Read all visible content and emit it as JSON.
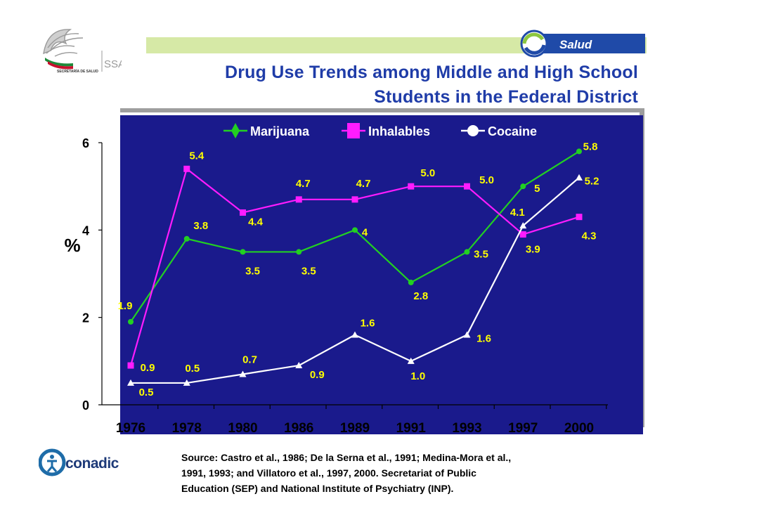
{
  "header": {
    "title_line1": "Drug Use Trends among  Middle and High School",
    "title_line2": "Students in the Federal District",
    "gov_logo_text": "SECRETARÍA DE SALUD",
    "gov_logo_ssa": "SSA",
    "salud_logo_text": "Salud"
  },
  "footer": {
    "source_line1": "Source: Castro et al., 1986; De la Serna et al., 1991; Medina-Mora et al.,",
    "source_line2": "1991, 1993; and Villatoro et al., 1997, 2000. Secretariat of Public",
    "source_line3": "Education (SEP) and National Institute of Psychiatry (INP).",
    "conadic_logo_text": "conadic"
  },
  "colors": {
    "plot_background": "#1a1a8c",
    "marijuana": "#22d022",
    "inhalables": "#ff1cff",
    "cocaine": "#ffffff",
    "data_label": "#ffff00",
    "title": "#1f3ca8",
    "top_band": "#d6e9a6"
  },
  "chart_data": {
    "type": "line",
    "categories": [
      "1976",
      "1978",
      "1980",
      "1986",
      "1989",
      "1991",
      "1993",
      "1997",
      "2000"
    ],
    "ylabel": "%",
    "ylim": [
      0,
      6
    ],
    "yticks": [
      "0",
      "2",
      "4",
      "6"
    ],
    "grid": false,
    "legend_position": "top",
    "series": [
      {
        "name": "Marijuana",
        "marker": "circle",
        "values": [
          1.9,
          3.8,
          3.5,
          3.5,
          4.0,
          2.8,
          3.5,
          5.0,
          5.8
        ],
        "labels": [
          "1.9",
          "3.8",
          "3.5",
          "3.5",
          "4",
          "2.8",
          "3.5",
          "5",
          "5.8"
        ]
      },
      {
        "name": "Inhalables",
        "marker": "square",
        "values": [
          0.9,
          5.4,
          4.4,
          4.7,
          4.7,
          5.0,
          5.0,
          3.9,
          4.3
        ],
        "labels": [
          "0.9",
          "5.4",
          "4.4",
          "4.7",
          "4.7",
          "5.0",
          "5.0",
          "3.9",
          "4.3"
        ]
      },
      {
        "name": "Cocaine",
        "marker": "triangle",
        "values": [
          0.5,
          0.5,
          0.7,
          0.9,
          1.6,
          1.0,
          1.6,
          4.1,
          5.2
        ],
        "labels": [
          "0.5",
          "0.5",
          "0.7",
          "0.9",
          "1.6",
          "1.0",
          "1.6",
          "4.1",
          "5.2"
        ]
      }
    ]
  }
}
